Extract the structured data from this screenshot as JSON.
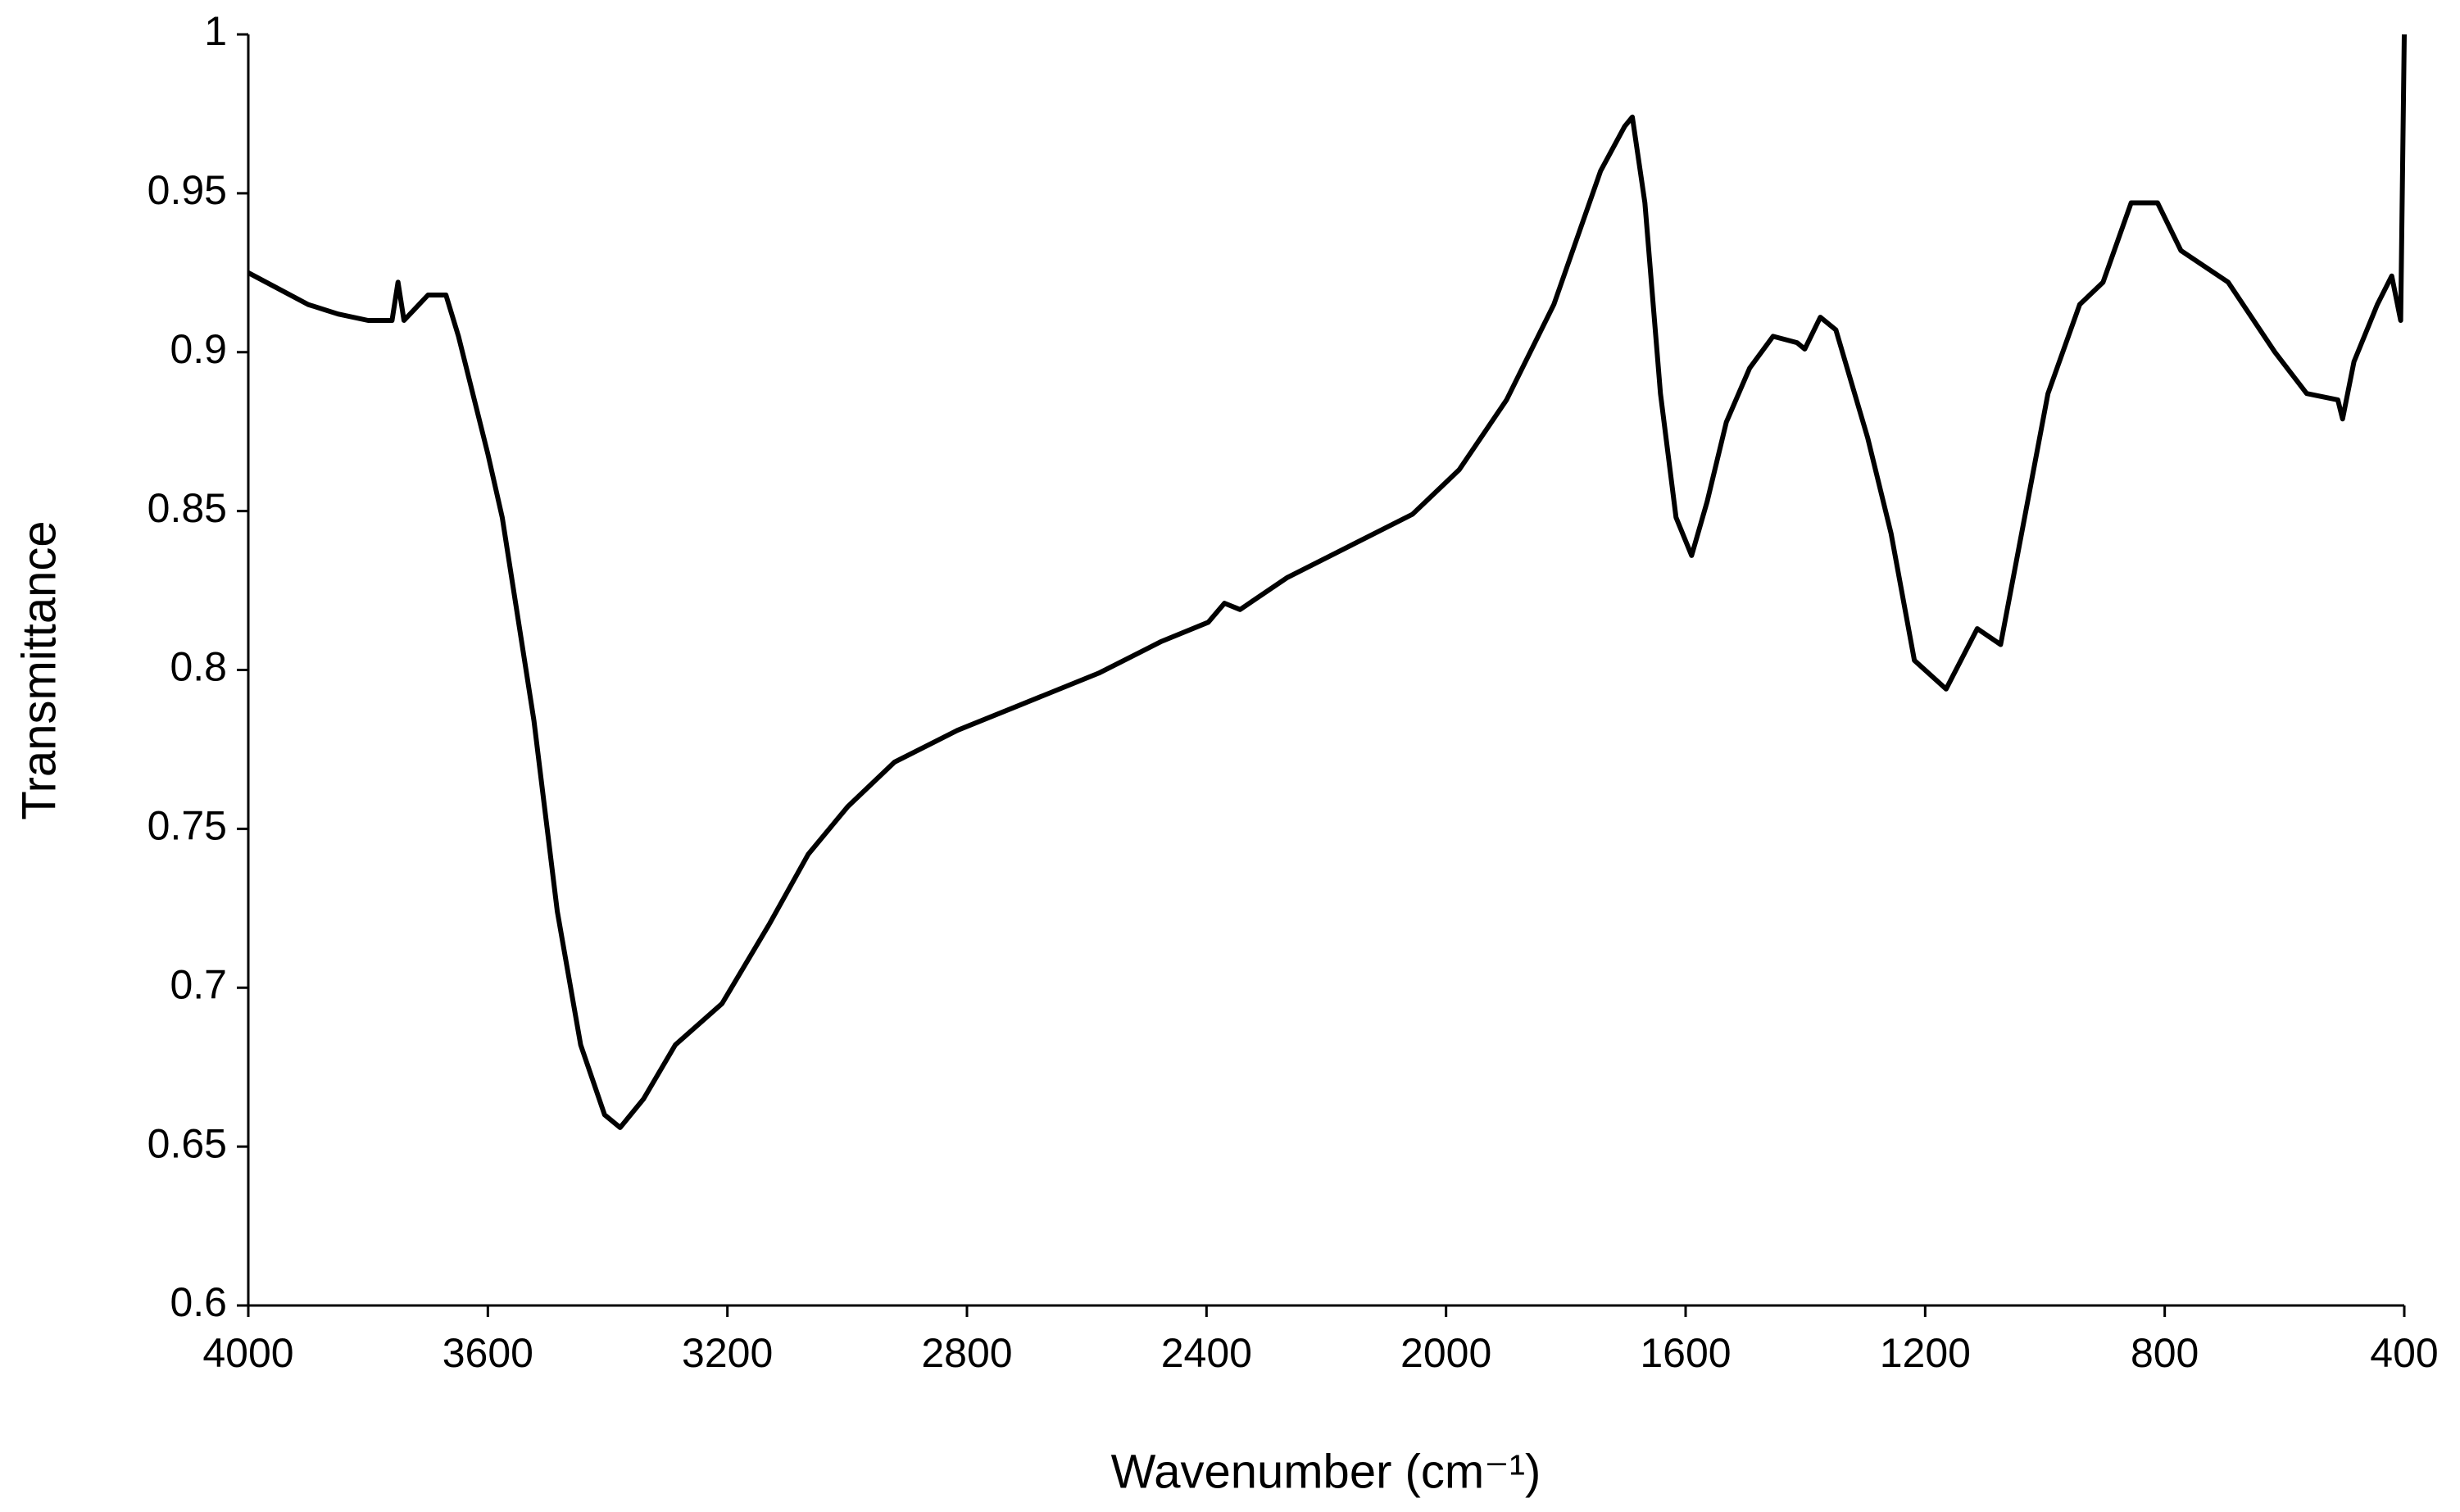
{
  "chart_data": {
    "type": "line",
    "xlabel": "Wavenumber (cm⁻¹)",
    "ylabel": "Transmittance",
    "color": "#000000",
    "x": [
      4000,
      3950,
      3900,
      3850,
      3800,
      3760,
      3750,
      3740,
      3700,
      3670,
      3649,
      3600,
      3576,
      3523,
      3484,
      3445,
      3405,
      3379,
      3340,
      3287,
      3209,
      3130,
      3065,
      2999,
      2921,
      2816,
      2711,
      2580,
      2475,
      2397,
      2370,
      2344,
      2266,
      2161,
      2056,
      1978,
      1899,
      1820,
      1742,
      1702,
      1689,
      1668,
      1642,
      1616,
      1590,
      1564,
      1532,
      1493,
      1454,
      1414,
      1401,
      1375,
      1349,
      1296,
      1257,
      1218,
      1165,
      1113,
      1074,
      1034,
      995,
      942,
      903,
      856,
      812,
      773,
      694,
      616,
      563,
      511,
      503,
      484,
      445,
      421,
      406,
      400
    ],
    "values": [
      0.925,
      0.92,
      0.915,
      0.912,
      0.91,
      0.91,
      0.922,
      0.91,
      0.918,
      0.918,
      0.905,
      0.868,
      0.848,
      0.784,
      0.724,
      0.682,
      0.66,
      0.656,
      0.665,
      0.682,
      0.695,
      0.72,
      0.742,
      0.757,
      0.771,
      0.781,
      0.789,
      0.799,
      0.809,
      0.815,
      0.821,
      0.819,
      0.829,
      0.839,
      0.849,
      0.863,
      0.885,
      0.915,
      0.957,
      0.971,
      0.974,
      0.947,
      0.887,
      0.848,
      0.836,
      0.853,
      0.878,
      0.895,
      0.905,
      0.903,
      0.901,
      0.911,
      0.907,
      0.873,
      0.843,
      0.803,
      0.794,
      0.813,
      0.808,
      0.848,
      0.887,
      0.915,
      0.922,
      0.947,
      0.947,
      0.932,
      0.922,
      0.9,
      0.887,
      0.885,
      0.879,
      0.897,
      0.915,
      0.924,
      0.91,
      1.0
    ],
    "xlim": [
      4000,
      400
    ],
    "xticks": [
      4000,
      3600,
      3200,
      2800,
      2400,
      2000,
      1600,
      1200,
      800,
      400
    ],
    "ylim": [
      0.6,
      1
    ],
    "yticks": [
      0.6,
      0.65,
      0.7,
      0.75,
      0.8,
      0.85,
      0.9,
      0.95,
      1
    ],
    "grid": false
  }
}
